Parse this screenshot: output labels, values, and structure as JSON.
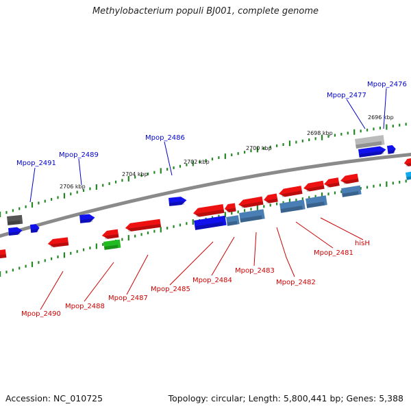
{
  "title": "Methylobacterium populi BJ001, complete genome",
  "footer": {
    "accession": "Accession: NC_010725",
    "stats": "Topology: circular; Length: 5,800,441 bp; Genes: 5,388"
  },
  "colors": {
    "forward_label": "#0000cc",
    "reverse_label": "#cc0000",
    "backbone": "#888888",
    "tick": "#228822",
    "gene_red": "#ee1111",
    "gene_blue": "#1111ee",
    "gene_steel": "#4a7fb5",
    "gene_gray": "#555555",
    "gene_lightgray": "#bbbbbb",
    "gene_green": "#22bb22",
    "gene_cyan": "#11aaee"
  },
  "scale": {
    "ticks": [
      "2696 kbp",
      "2698 kbp",
      "2700 kbp",
      "2702 kbp",
      "2704 kbp",
      "2706 kbp"
    ]
  },
  "labels": {
    "forward": [
      "Mpop_2476",
      "Mpop_2477",
      "Mpop_2486",
      "Mpop_2489",
      "Mpop_2491"
    ],
    "reverse": [
      "hisH",
      "Mpop_2481",
      "Mpop_2482",
      "Mpop_2483",
      "Mpop_2484",
      "Mpop_2485",
      "Mpop_2487",
      "Mpop_2488",
      "Mpop_2490"
    ]
  }
}
